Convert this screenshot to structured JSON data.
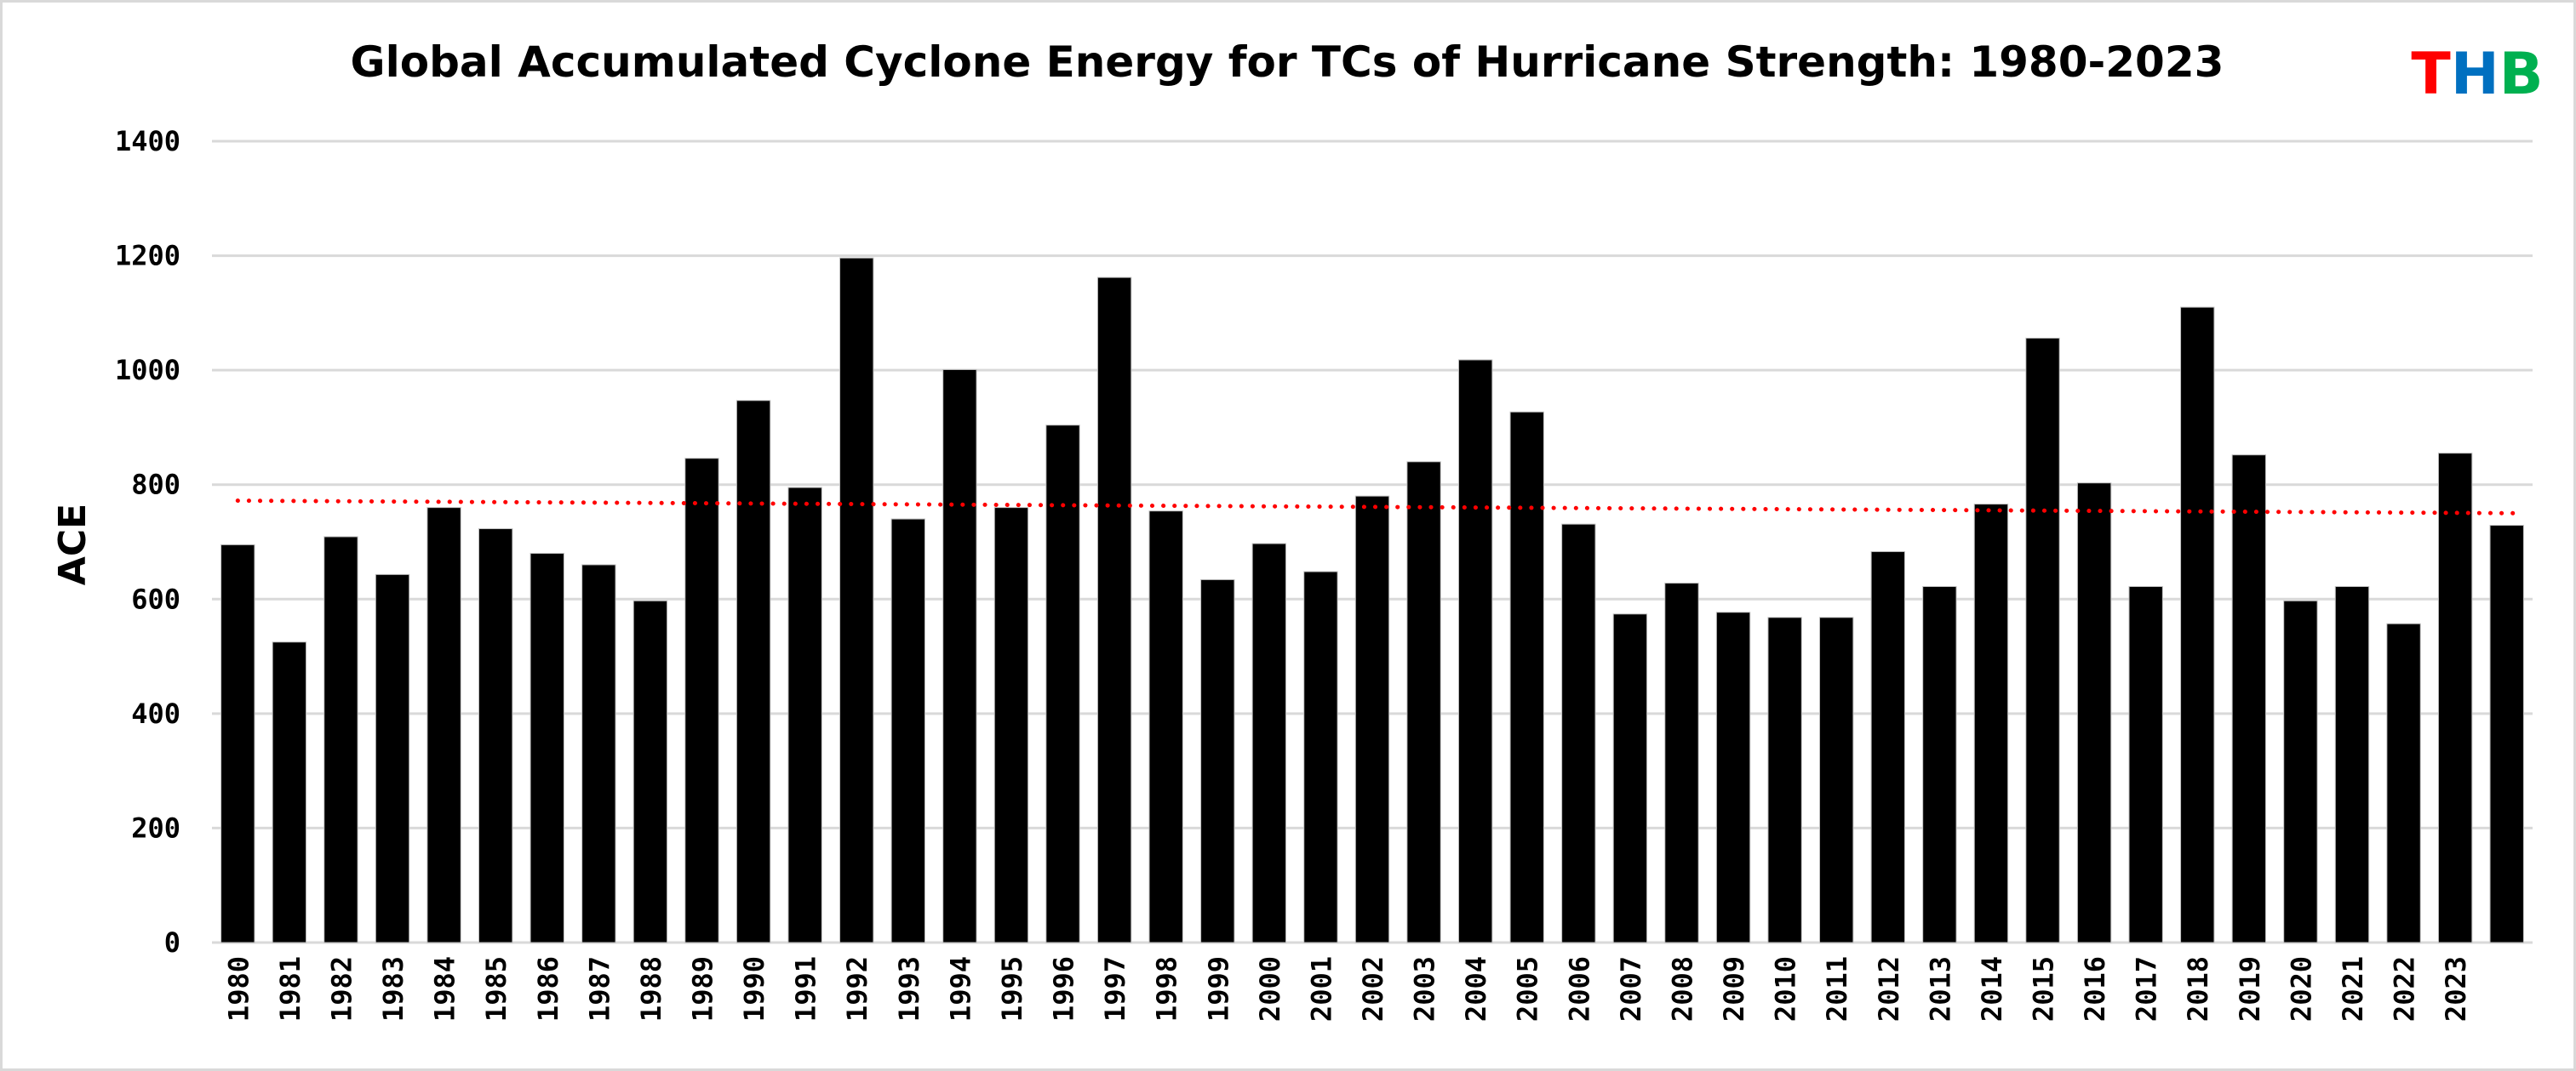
{
  "chart_data": {
    "type": "bar",
    "title": "Global Accumulated Cyclone Energy for TCs of Hurricane Strength: 1980-2023",
    "xlabel": "",
    "ylabel": "ACE",
    "ylim": [
      0,
      1400
    ],
    "yticks": [
      0,
      200,
      400,
      600,
      800,
      1000,
      1200,
      1400
    ],
    "grid": true,
    "bar_color": "#000000",
    "categories": [
      "1980",
      "1981",
      "1982",
      "1983",
      "1984",
      "1985",
      "1986",
      "1987",
      "1988",
      "1989",
      "1990",
      "1991",
      "1992",
      "1993",
      "1994",
      "1995",
      "1996",
      "1997",
      "1998",
      "1999",
      "2000",
      "2001",
      "2002",
      "2003",
      "2004",
      "2005",
      "2006",
      "2007",
      "2008",
      "2009",
      "2010",
      "2011",
      "2012",
      "2013",
      "2014",
      "2015",
      "2016",
      "2017",
      "2018",
      "2019",
      "2020",
      "2021",
      "2022",
      "2023",
      ""
    ],
    "values": [
      695,
      525,
      709,
      643,
      760,
      723,
      680,
      660,
      597,
      846,
      947,
      795,
      1196,
      740,
      1001,
      760,
      904,
      1162,
      754,
      634,
      697,
      648,
      780,
      840,
      1018,
      927,
      731,
      574,
      628,
      577,
      568,
      568,
      683,
      622,
      766,
      1056,
      803,
      622,
      1110,
      852,
      597,
      622,
      557,
      855,
      729
    ],
    "trendline": {
      "style": "dotted",
      "color": "#ff0000",
      "start": 772,
      "end": 750
    }
  },
  "logo": {
    "letters": [
      "T",
      "H",
      "B"
    ],
    "colors": [
      "#ff0000",
      "#0070c0",
      "#00b050"
    ]
  }
}
